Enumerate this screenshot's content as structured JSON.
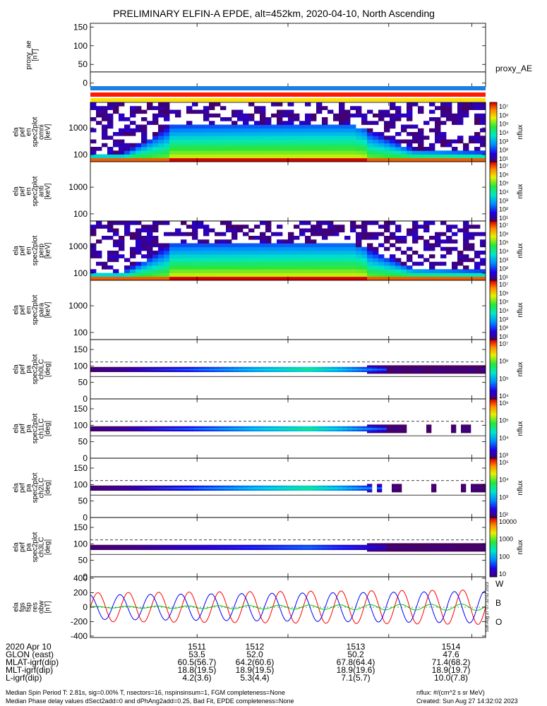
{
  "title": "PRELIMINARY ELFIN-A EPDE, alt=452km, 2020-04-10, North Ascending",
  "panels": [
    {
      "id": "proxy_ae",
      "ylabel": [
        "proxy_ae",
        "[nT]"
      ],
      "yticks": [
        "150",
        "100",
        "50",
        "0"
      ],
      "right_label": "proxy_AE"
    },
    {
      "id": "en_omni",
      "ylabel": [
        "ela",
        "pef",
        "en",
        "spec2plot",
        "omni",
        "[keV]"
      ],
      "yticks": [
        "1000",
        "100"
      ],
      "cbar_ticks": [
        "10⁷",
        "10⁶",
        "10⁵",
        "10⁴",
        "10³",
        "10²",
        "10¹"
      ],
      "cbar_label": "nflux"
    },
    {
      "id": "en_anti",
      "ylabel": [
        "ela",
        "pef",
        "en",
        "spec2plot",
        "anti",
        "[keV]"
      ],
      "yticks": [
        "1000",
        "100"
      ],
      "cbar_ticks": [
        "10⁷",
        "10⁶",
        "10⁵",
        "10⁴",
        "10³",
        "10²",
        "10¹"
      ],
      "cbar_label": "nflux"
    },
    {
      "id": "en_perp",
      "ylabel": [
        "ela",
        "pef",
        "en",
        "spec2plot",
        "perp",
        "[keV]"
      ],
      "yticks": [
        "1000",
        "100"
      ],
      "cbar_ticks": [
        "10⁷",
        "10⁶",
        "10⁵",
        "10⁴",
        "10³",
        "10²",
        "10¹"
      ],
      "cbar_label": "nflux"
    },
    {
      "id": "en_para",
      "ylabel": [
        "ela",
        "pef",
        "en",
        "spec2plot",
        "para",
        "[keV]"
      ],
      "yticks": [
        "1000",
        "100"
      ],
      "cbar_ticks": [
        "10⁷",
        "10⁶",
        "10⁵",
        "10⁴",
        "10³",
        "10²",
        "10¹"
      ],
      "cbar_label": "nflux"
    },
    {
      "id": "pa_ch0",
      "ylabel": [
        "ela",
        "pef",
        "pa",
        "spec2plot",
        "ch0LC",
        "[deg]"
      ],
      "yticks": [
        "150",
        "100",
        "50",
        "0"
      ],
      "cbar_ticks": [
        "10⁷",
        "10⁶",
        "10⁵",
        "10⁴"
      ],
      "cbar_label": "nflux"
    },
    {
      "id": "pa_ch1",
      "ylabel": [
        "ela",
        "pef",
        "pa",
        "spec2plot",
        "ch1LC",
        "[deg]"
      ],
      "yticks": [
        "150",
        "100",
        "50",
        "0"
      ],
      "cbar_ticks": [
        "10⁶",
        "10⁵",
        "10⁴",
        "10³"
      ],
      "cbar_label": "nflux"
    },
    {
      "id": "pa_ch2",
      "ylabel": [
        "ela",
        "pef",
        "pa",
        "spec2plot",
        "ch2LC",
        "[deg]"
      ],
      "yticks": [
        "150",
        "100",
        "50",
        "0"
      ],
      "cbar_ticks": [
        "10⁵",
        "10⁴",
        "10³",
        "10²"
      ],
      "cbar_label": "nflux"
    },
    {
      "id": "pa_ch3",
      "ylabel": [
        "ela",
        "pef",
        "pa",
        "spec2plot",
        "ch3LC",
        "[deg]"
      ],
      "yticks": [
        "150",
        "100",
        "50",
        "0"
      ],
      "cbar_ticks": [
        "10000",
        "1000",
        "100",
        "10"
      ],
      "cbar_label": "nflux"
    },
    {
      "id": "fgs",
      "ylabel": [
        "ela",
        "fgs",
        "fsp",
        "res",
        "obw",
        "[nT]"
      ],
      "yticks": [
        "400",
        "200",
        "0",
        "-200",
        "-400"
      ],
      "legend": [
        {
          "label": "W",
          "color": "#ff0000"
        },
        {
          "label": "B",
          "color": "#00cc00"
        },
        {
          "label": "O",
          "color": "#0000ff"
        }
      ],
      "side_stamp": "Sun Aug 27 07:32:02 2023"
    }
  ],
  "chart_data": {
    "type": "multi-panel time series / spectrogram",
    "x_ticks": [
      "1511",
      "1512",
      "1513",
      "1514"
    ],
    "proxy_ae": {
      "ylim": [
        -10,
        160
      ],
      "value": 30
    },
    "energy_range_keV": [
      60,
      6000
    ],
    "pitch_angle_ylim": [
      0,
      180
    ],
    "loss_cone_deg": {
      "upper": 112,
      "lower": 68
    },
    "fgs": {
      "ylim": [
        -420,
        420
      ],
      "series": [
        {
          "name": "W",
          "color": "#ff0000",
          "amplitude_start": 200,
          "amplitude_end": 240
        },
        {
          "name": "O",
          "color": "#0000ff",
          "amplitude_start": 170,
          "amplitude_end": 220
        },
        {
          "name": "B",
          "color": "#00cc00",
          "amplitude_start": 10,
          "amplitude_end": 45
        }
      ],
      "oscillations": 13
    }
  },
  "footer": {
    "row_labels": [
      "2020 Apr 10",
      "GLON (east)",
      "MLAT-igrf(dip)",
      "MLT-igrf(dip)",
      "L-igrf(dip)"
    ],
    "columns": [
      [
        "1511",
        "53.5",
        "60.5(56.7)",
        "18.8(19.5)",
        "4.2(3.6)"
      ],
      [
        "1512",
        "52.0",
        "64.2(60.6)",
        "18.9(19.5)",
        "5.3(4.4)"
      ],
      [
        "1513",
        "50.2",
        "67.8(64.4)",
        "18.9(19.6)",
        "7.1(5.7)"
      ],
      [
        "1514",
        "47.6",
        "71.4(68.2)",
        "18.9(19.7)",
        "10.0(7.8)"
      ]
    ],
    "note1": "Median Spin Period T: 2.81s, sig=0.00% T, nsectors=16, nspinsinsum=1, FGM completeness=None",
    "note2": "Median Phase delay values dSect2add=0 and dPhAng2add=0.25, Bad Fit, EPDE completeness=None",
    "units": "nflux: #/(cm^2 s sr MeV)",
    "created": "Created: Sun Aug 27 14:32:02 2023"
  },
  "colors": {
    "bar_blue": "#1e7fe0",
    "bar_red": "#ff1a00",
    "bar_yellow": "#ffe000"
  }
}
